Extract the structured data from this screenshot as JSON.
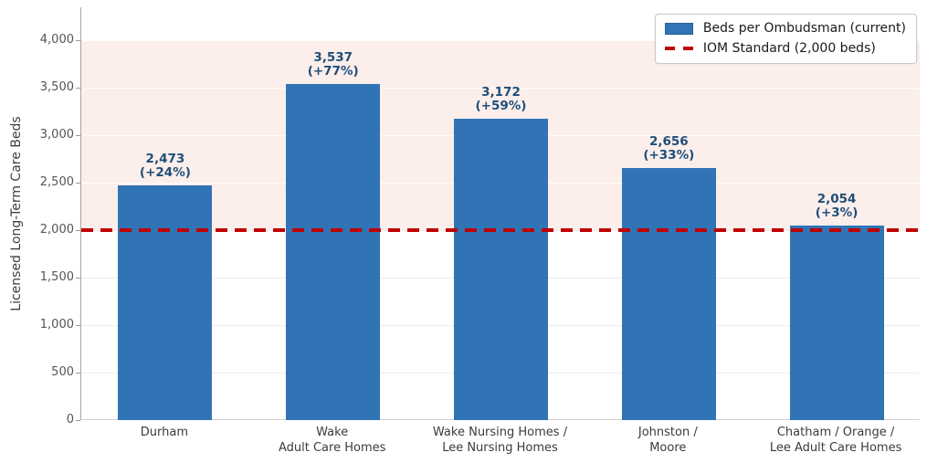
{
  "legend": {
    "position": "upper-right",
    "items": [
      {
        "label": "Beds per Ombudsman (current)",
        "swatch": "bar-swatch",
        "color": "#3174b5"
      },
      {
        "label": "IOM Standard (2,000 beds)",
        "swatch": "dashed-line-swatch",
        "color": "#c00000"
      }
    ]
  },
  "chart_data": {
    "type": "bar",
    "title": "",
    "xlabel": "",
    "ylabel": "Licensed Long-Term Care Beds",
    "categories": [
      [
        "Durham"
      ],
      [
        "Wake",
        "Adult Care Homes"
      ],
      [
        "Wake Nursing Homes /",
        "Lee Nursing Homes"
      ],
      [
        "Johnston /",
        "Moore"
      ],
      [
        "Chatham / Orange /",
        "Lee Adult Care Homes"
      ]
    ],
    "values": [
      2473,
      3537,
      3172,
      2656,
      2054
    ],
    "bar_labels": [
      [
        "2,473",
        "(+24%)"
      ],
      [
        "3,537",
        "(+77%)"
      ],
      [
        "3,172",
        "(+59%)"
      ],
      [
        "2,656",
        "(+33%)"
      ],
      [
        "2,054",
        "(+3%)"
      ]
    ],
    "series_name": "Beds per Ombudsman (current)",
    "bar_color": "#3174b5",
    "bar_label_color": "#1f4e79",
    "ylim": [
      0,
      4350
    ],
    "yticks": [
      {
        "value": 0,
        "label": "0"
      },
      {
        "value": 500,
        "label": "500"
      },
      {
        "value": 1000,
        "label": "1,000"
      },
      {
        "value": 1500,
        "label": "1,500"
      },
      {
        "value": 2000,
        "label": "2,000"
      },
      {
        "value": 2500,
        "label": "2,500"
      },
      {
        "value": 3000,
        "label": "3,000"
      },
      {
        "value": 3500,
        "label": "3,500"
      },
      {
        "value": 4000,
        "label": "4,000"
      }
    ],
    "reference_line": {
      "value": 2000,
      "label": "IOM Standard (2,000 beds)",
      "color": "#c00000",
      "style": "dashed"
    },
    "shaded_band": {
      "from": 2000,
      "to": 4000,
      "color": "#fbeeeb"
    },
    "grid": true,
    "legend_position": "upper right"
  }
}
